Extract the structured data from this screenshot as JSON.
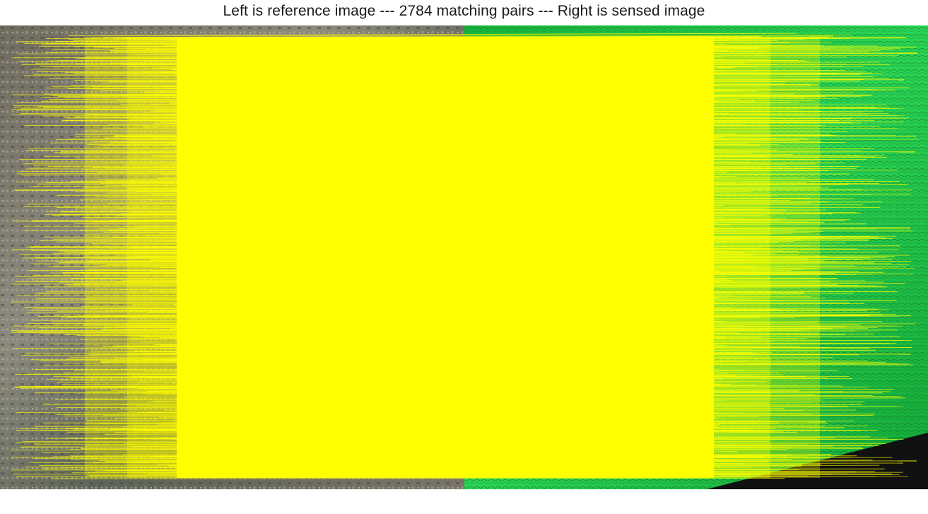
{
  "figure": {
    "title": "Left is reference image --- 2784 matching pairs --- Right is sensed image"
  },
  "panels": {
    "left": {
      "kind": "reference",
      "description_color": "#7b7c72"
    },
    "right": {
      "kind": "sensed",
      "description_color": "#22c94a"
    }
  },
  "matches": {
    "count": 2784,
    "line_color": "#ffff00"
  },
  "colors": {
    "background": "#ffffff",
    "nodata": "#111111"
  }
}
